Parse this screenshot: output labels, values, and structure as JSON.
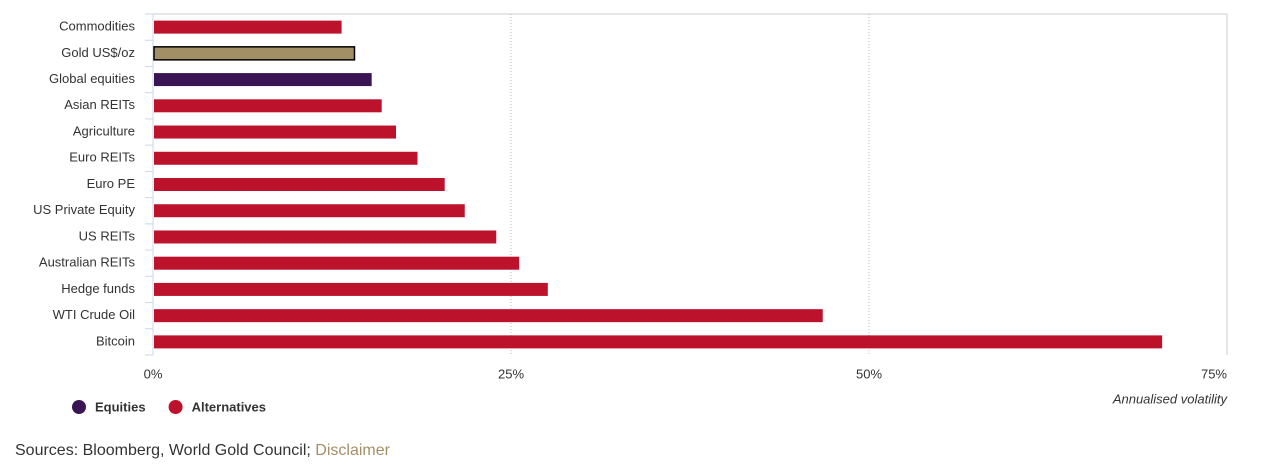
{
  "chart_data": {
    "type": "barh",
    "categories": [
      "Commodities",
      "Gold US$/oz",
      "Global equities",
      "Asian REITs",
      "Agriculture",
      "Euro REITs",
      "Euro PE",
      "US Private Equity",
      "US REITs",
      "Australian REITs",
      "Hedge funds",
      "WTI Crude Oil",
      "Bitcoin"
    ],
    "values": [
      13.1,
      14.0,
      15.2,
      15.9,
      16.9,
      18.4,
      20.3,
      21.7,
      23.9,
      25.5,
      27.5,
      46.7,
      70.4
    ],
    "colors": [
      "#bc122c",
      "#a38f66",
      "#3a1453",
      "#bc122c",
      "#bc122c",
      "#bc122c",
      "#bc122c",
      "#bc122c",
      "#bc122c",
      "#bc122c",
      "#bc122c",
      "#bc122c",
      "#bc122c"
    ],
    "edgecolors": [
      null,
      "#000000",
      null,
      null,
      null,
      null,
      null,
      null,
      null,
      null,
      null,
      null,
      null
    ],
    "legend": [
      {
        "name": "Equities",
        "color": "#3a1453"
      },
      {
        "name": "Alternatives",
        "color": "#bc122c"
      }
    ],
    "xlabel": "Annualised volatility",
    "xlim": [
      0,
      75
    ],
    "xticks": [
      {
        "value": 0,
        "label": "0%"
      },
      {
        "value": 25,
        "label": "25%"
      },
      {
        "value": 50,
        "label": "50%"
      },
      {
        "value": 75,
        "label": "75%"
      }
    ],
    "grid": true
  },
  "source": "Sources: Bloomberg, World Gold Council; ",
  "source_link": "Disclaimer"
}
